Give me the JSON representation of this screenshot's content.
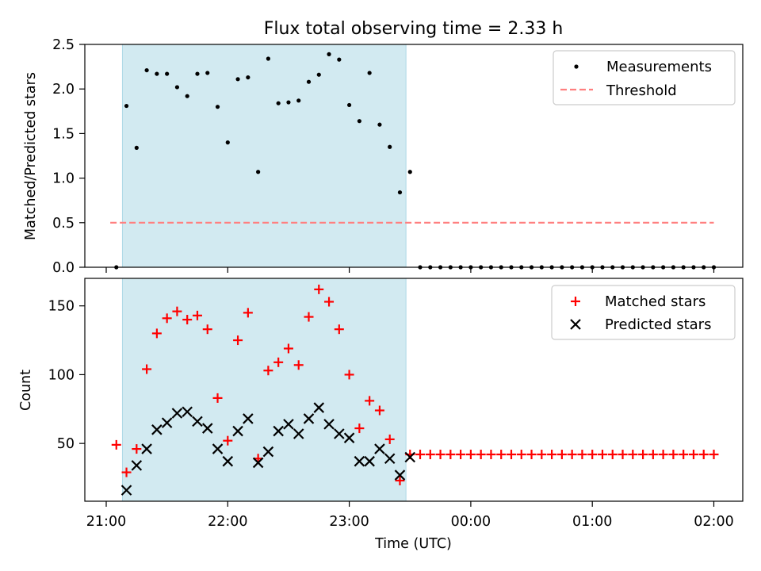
{
  "chart_data": [
    {
      "type": "scatter",
      "title": "Flux total observing time = 2.33 h",
      "xlabel": "",
      "ylabel": "Matched/Predicted stars",
      "ylim": [
        0,
        2.5
      ],
      "yticks": [
        "0.0",
        "0.5",
        "1.0",
        "1.5",
        "2.0",
        "2.5"
      ],
      "shaded_span": [
        "21:08",
        "23:28"
      ],
      "threshold": 0.5,
      "threshold_span": [
        "21:02",
        "02:00"
      ],
      "legend": {
        "position": "top-right",
        "entries": [
          "Measurements",
          "Threshold"
        ]
      },
      "colors": {
        "measurements": "#000000",
        "threshold": "#ff7f7f",
        "span": "#add8e6"
      },
      "series": [
        {
          "name": "Measurements",
          "x": [
            "21:05",
            "21:10",
            "21:15",
            "21:20",
            "21:25",
            "21:30",
            "21:35",
            "21:40",
            "21:45",
            "21:50",
            "21:55",
            "22:00",
            "22:05",
            "22:10",
            "22:15",
            "22:20",
            "22:25",
            "22:30",
            "22:35",
            "22:40",
            "22:45",
            "22:50",
            "22:55",
            "23:00",
            "23:05",
            "23:10",
            "23:15",
            "23:20",
            "23:25",
            "23:30",
            "23:35",
            "23:40",
            "23:45",
            "23:50",
            "23:55",
            "00:00",
            "00:05",
            "00:10",
            "00:15",
            "00:20",
            "00:25",
            "00:30",
            "00:35",
            "00:40",
            "00:45",
            "00:50",
            "00:55",
            "01:00",
            "01:05",
            "01:10",
            "01:15",
            "01:20",
            "01:25",
            "01:30",
            "01:35",
            "01:40",
            "01:45",
            "01:50",
            "01:55",
            "02:00"
          ],
          "y": [
            0,
            1.81,
            1.34,
            2.21,
            2.17,
            2.17,
            2.02,
            1.92,
            2.17,
            2.18,
            1.8,
            1.4,
            2.11,
            2.13,
            1.07,
            2.34,
            1.84,
            1.85,
            1.87,
            2.08,
            2.16,
            2.39,
            2.33,
            1.82,
            1.64,
            2.18,
            1.6,
            1.35,
            0.84,
            1.07,
            0,
            0,
            0,
            0,
            0,
            0,
            0,
            0,
            0,
            0,
            0,
            0,
            0,
            0,
            0,
            0,
            0,
            0,
            0,
            0,
            0,
            0,
            0,
            0,
            0,
            0,
            0,
            0,
            0,
            0
          ]
        }
      ]
    },
    {
      "type": "scatter",
      "title": "",
      "xlabel": "Time (UTC)",
      "ylabel": "Count",
      "ylim": [
        8,
        170
      ],
      "yticks": [
        "50",
        "100",
        "150"
      ],
      "xticks": [
        "21:00",
        "22:00",
        "23:00",
        "00:00",
        "01:00",
        "02:00"
      ],
      "shaded_span": [
        "21:08",
        "23:28"
      ],
      "legend": {
        "position": "top-right",
        "entries": [
          "Matched stars",
          "Predicted stars"
        ]
      },
      "colors": {
        "matched": "#ff0000",
        "predicted": "#000000"
      },
      "series": [
        {
          "name": "Matched stars",
          "x": [
            "21:05",
            "21:10",
            "21:15",
            "21:20",
            "21:25",
            "21:30",
            "21:35",
            "21:40",
            "21:45",
            "21:50",
            "21:55",
            "22:00",
            "22:05",
            "22:10",
            "22:15",
            "22:20",
            "22:25",
            "22:30",
            "22:35",
            "22:40",
            "22:45",
            "22:50",
            "22:55",
            "23:00",
            "23:05",
            "23:10",
            "23:15",
            "23:20",
            "23:25",
            "23:30",
            "23:35",
            "23:40",
            "23:45",
            "23:50",
            "23:55",
            "00:00",
            "00:05",
            "00:10",
            "00:15",
            "00:20",
            "00:25",
            "00:30",
            "00:35",
            "00:40",
            "00:45",
            "00:50",
            "00:55",
            "01:00",
            "01:05",
            "01:10",
            "01:15",
            "01:20",
            "01:25",
            "01:30",
            "01:35",
            "01:40",
            "01:45",
            "01:50",
            "01:55",
            "02:00"
          ],
          "y": [
            49,
            29,
            46,
            104,
            130,
            141,
            146,
            140,
            143,
            133,
            83,
            52,
            125,
            145,
            39,
            103,
            109,
            119,
            107,
            142,
            162,
            153,
            133,
            100,
            61,
            81,
            74,
            53,
            23,
            42,
            42,
            42,
            42,
            42,
            42,
            42,
            42,
            42,
            42,
            42,
            42,
            42,
            42,
            42,
            42,
            42,
            42,
            42,
            42,
            42,
            42,
            42,
            42,
            42,
            42,
            42,
            42,
            42,
            42,
            42
          ]
        },
        {
          "name": "Predicted stars",
          "x": [
            "21:10",
            "21:15",
            "21:20",
            "21:25",
            "21:30",
            "21:35",
            "21:40",
            "21:45",
            "21:50",
            "21:55",
            "22:00",
            "22:05",
            "22:10",
            "22:15",
            "22:20",
            "22:25",
            "22:30",
            "22:35",
            "22:40",
            "22:45",
            "22:50",
            "22:55",
            "23:00",
            "23:05",
            "23:10",
            "23:15",
            "23:20",
            "23:25",
            "23:30"
          ],
          "y": [
            16,
            34,
            46,
            60,
            65,
            72,
            73,
            66,
            61,
            46,
            37,
            59,
            68,
            36,
            44,
            59,
            64,
            57,
            68,
            76,
            64,
            57,
            54,
            37,
            37,
            46,
            39,
            27,
            40
          ]
        }
      ]
    }
  ]
}
